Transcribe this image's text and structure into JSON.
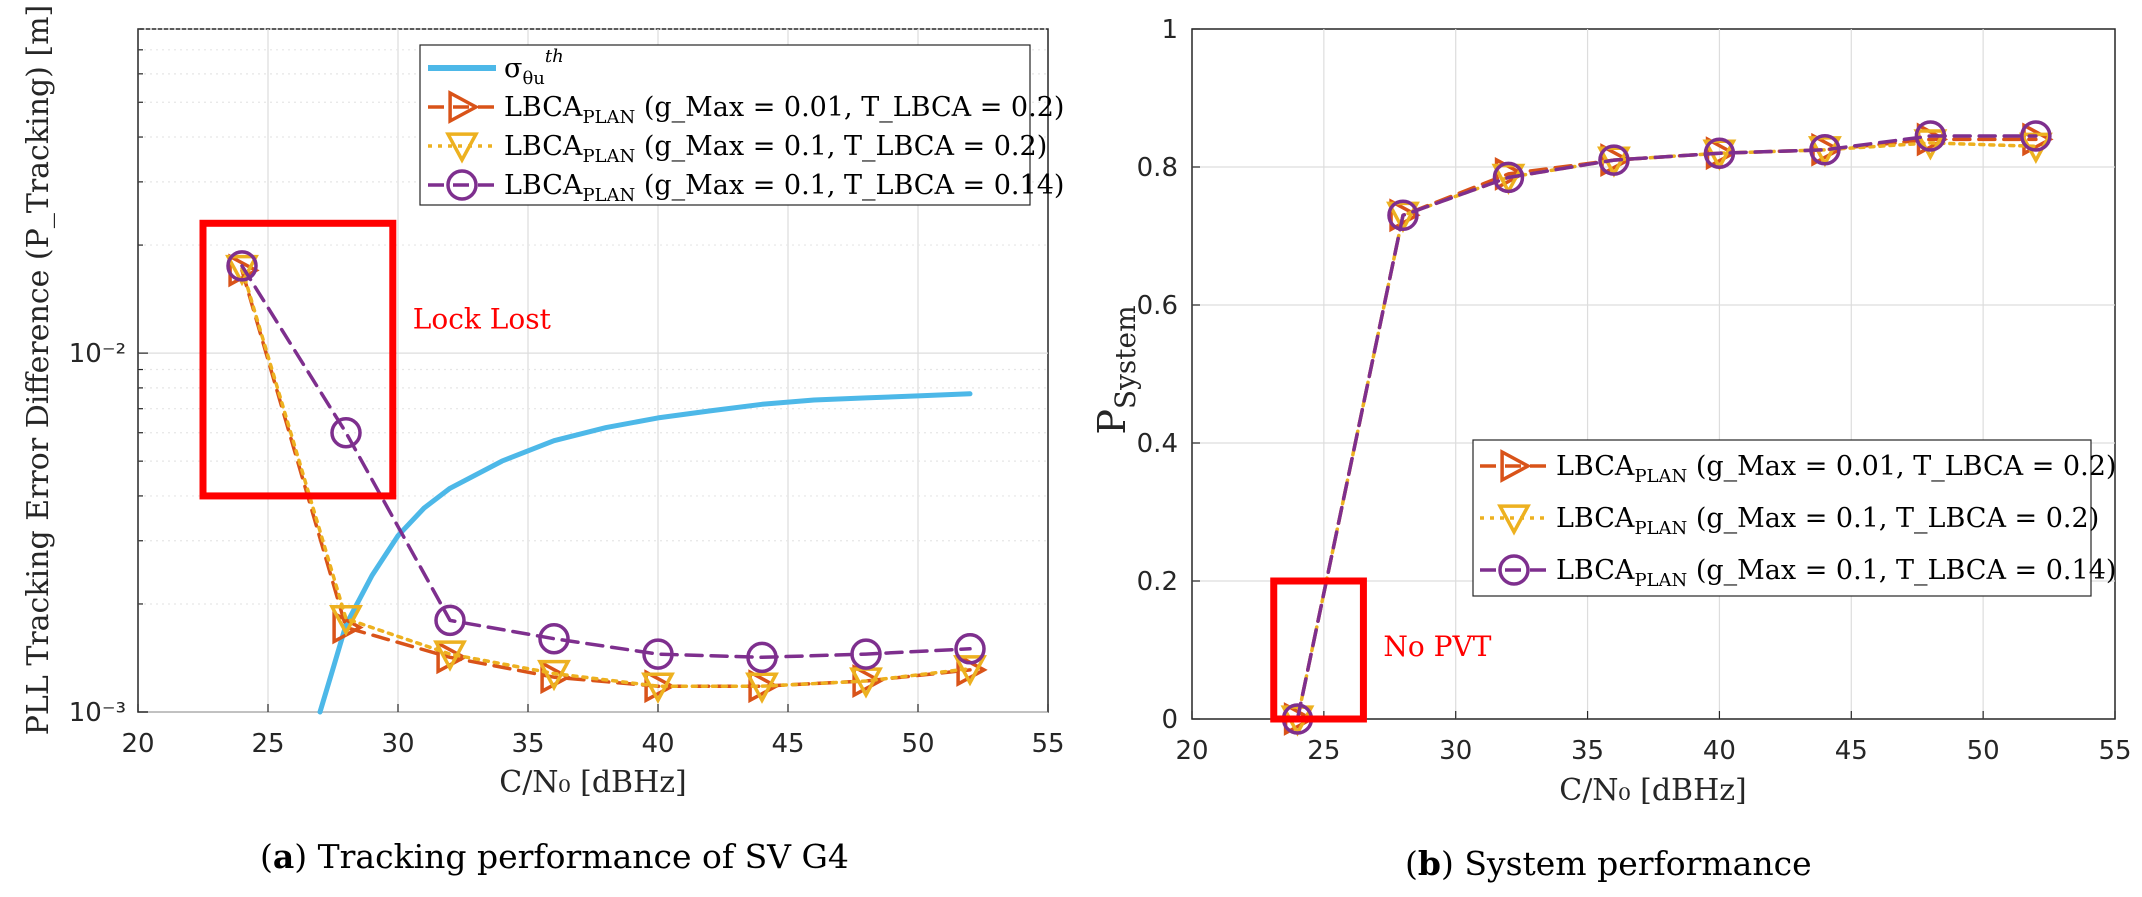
{
  "chart_data": [
    {
      "type": "line",
      "panel": "a",
      "caption_tag": "a",
      "caption_text": "Tracking performance of SV G4",
      "xlabel": "C/N₀ [dBHz]",
      "ylabel": "PLL Tracking Error Difference (P_Tracking) [m]",
      "yscale": "log",
      "xlim": [
        20,
        55
      ],
      "ylim": [
        0.001,
        0.08
      ],
      "xticks": [
        20,
        25,
        30,
        35,
        40,
        45,
        50,
        55
      ],
      "yticks": [
        {
          "value": 0.001,
          "label": "10⁻³"
        },
        {
          "value": 0.01,
          "label": "10⁻²"
        }
      ],
      "grid": true,
      "legend_position": "top-right",
      "series": [
        {
          "name": "σ_θu^th",
          "label": "σ",
          "sup": "th",
          "sub": "θu",
          "style": "solid",
          "color": "#4db8e8",
          "marker": "none",
          "x": [
            27,
            27.5,
            28,
            29,
            30,
            31,
            32,
            34,
            36,
            38,
            40,
            42,
            44,
            46,
            48,
            50,
            52
          ],
          "values": [
            0.001,
            0.00132,
            0.00175,
            0.0024,
            0.0031,
            0.0037,
            0.0042,
            0.005,
            0.0057,
            0.0062,
            0.0066,
            0.0069,
            0.0072,
            0.0074,
            0.0075,
            0.0076,
            0.0077
          ]
        },
        {
          "name": "LBCA_PLAN (g_Max = 0.01, T_LBCA = 0.2)",
          "label": "LBCA",
          "sub": "PLAN",
          "params": "(g_Max = 0.01, T_LBCA = 0.2)",
          "style": "dashed",
          "color": "#d95319",
          "marker": "triangle-right",
          "x": [
            24,
            28,
            32,
            36,
            40,
            44,
            48,
            52
          ],
          "values": [
            0.017,
            0.00172,
            0.00142,
            0.00125,
            0.00118,
            0.00118,
            0.00122,
            0.00131
          ]
        },
        {
          "name": "LBCA_PLAN (g_Max = 0.1, T_LBCA = 0.2)",
          "label": "LBCA",
          "sub": "PLAN",
          "params": "(g_Max = 0.1, T_LBCA = 0.2)",
          "style": "dotted",
          "color": "#edb120",
          "marker": "triangle-down",
          "x": [
            24,
            28,
            32,
            36,
            40,
            44,
            48,
            52
          ],
          "values": [
            0.0172,
            0.00182,
            0.00145,
            0.00128,
            0.00118,
            0.00118,
            0.00122,
            0.00132
          ]
        },
        {
          "name": "LBCA_PLAN (g_Max = 0.1, T_LBCA = 0.14)",
          "label": "LBCA",
          "sub": "PLAN",
          "params": "(g_Max = 0.1, T_LBCA = 0.14)",
          "style": "dashed",
          "color": "#7e2f8e",
          "marker": "circle",
          "x": [
            24,
            28,
            32,
            36,
            40,
            44,
            48,
            52
          ],
          "values": [
            0.0175,
            0.006,
            0.0018,
            0.0016,
            0.00145,
            0.00142,
            0.00145,
            0.0015
          ]
        }
      ],
      "annotation": {
        "text": "Lock Lost",
        "box_x": [
          22.5,
          29.8
        ],
        "box_y": [
          0.004,
          0.023
        ]
      }
    },
    {
      "type": "line",
      "panel": "b",
      "caption_tag": "b",
      "caption_text": "System performance",
      "xlabel": "C/N₀ [dBHz]",
      "ylabel": "P_System",
      "ylabel_main": "P",
      "ylabel_sub": "System",
      "yscale": "linear",
      "xlim": [
        20,
        55
      ],
      "ylim": [
        0,
        1
      ],
      "xticks": [
        20,
        25,
        30,
        35,
        40,
        45,
        50,
        55
      ],
      "yticks": [
        {
          "value": 0,
          "label": "0"
        },
        {
          "value": 0.2,
          "label": "0.2"
        },
        {
          "value": 0.4,
          "label": "0.4"
        },
        {
          "value": 0.6,
          "label": "0.6"
        },
        {
          "value": 0.8,
          "label": "0.8"
        },
        {
          "value": 1,
          "label": "1"
        }
      ],
      "grid": true,
      "legend_position": "center-right",
      "series": [
        {
          "name": "LBCA_PLAN (g_Max = 0.01, T_LBCA = 0.2)",
          "label": "LBCA",
          "sub": "PLAN",
          "params": "(g_Max = 0.01, T_LBCA = 0.2)",
          "style": "dashed",
          "color": "#d95319",
          "marker": "triangle-right",
          "x": [
            24,
            28,
            32,
            36,
            40,
            44,
            48,
            52
          ],
          "values": [
            0.0,
            0.73,
            0.79,
            0.81,
            0.82,
            0.825,
            0.84,
            0.84
          ]
        },
        {
          "name": "LBCA_PLAN (g_Max = 0.1, T_LBCA = 0.2)",
          "label": "LBCA",
          "sub": "PLAN",
          "params": "(g_Max = 0.1, T_LBCA = 0.2)",
          "style": "dotted",
          "color": "#edb120",
          "marker": "triangle-down",
          "x": [
            24,
            28,
            32,
            36,
            40,
            44,
            48,
            52
          ],
          "values": [
            0.0,
            0.73,
            0.785,
            0.81,
            0.82,
            0.825,
            0.835,
            0.83
          ]
        },
        {
          "name": "LBCA_PLAN (g_Max = 0.1, T_LBCA = 0.14)",
          "label": "LBCA",
          "sub": "PLAN",
          "params": "(g_Max = 0.1, T_LBCA = 0.14)",
          "style": "dashed",
          "color": "#7e2f8e",
          "marker": "circle",
          "x": [
            24,
            28,
            32,
            36,
            40,
            44,
            48,
            52
          ],
          "values": [
            0.0,
            0.73,
            0.785,
            0.81,
            0.82,
            0.825,
            0.845,
            0.845
          ]
        }
      ],
      "annotation": {
        "text": "No PVT",
        "box_x": [
          23.1,
          26.5
        ],
        "box_y": [
          0,
          0.2
        ]
      }
    }
  ]
}
